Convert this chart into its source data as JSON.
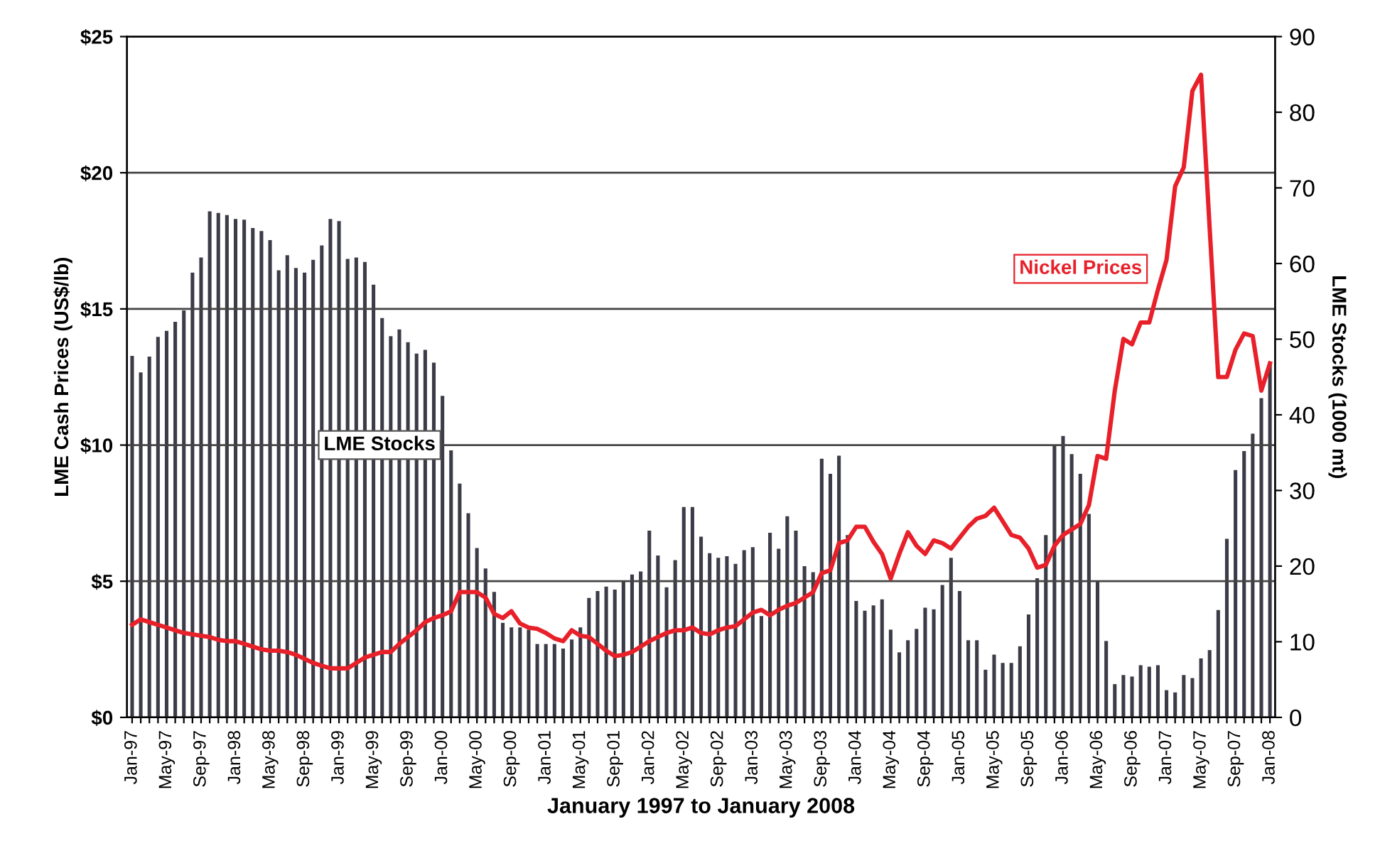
{
  "chart_data": {
    "type": "bar",
    "xlabel": "January 1997 to January 2008",
    "ylabel": "LME Cash Prices (US$/lb)",
    "y2label": "LME Stocks (1000 mt)",
    "categories": [
      "Jan-97",
      null,
      null,
      null,
      "May-97",
      null,
      null,
      null,
      "Sep-97",
      null,
      null,
      null,
      "Jan-98",
      null,
      null,
      null,
      "May-98",
      null,
      null,
      null,
      "Sep-98",
      null,
      null,
      null,
      "Jan-99",
      null,
      null,
      null,
      "May-99",
      null,
      null,
      null,
      "Sep-99",
      null,
      null,
      null,
      "Jan-00",
      null,
      null,
      null,
      "May-00",
      null,
      null,
      null,
      "Sep-00",
      null,
      null,
      null,
      "Jan-01",
      null,
      null,
      null,
      "May-01",
      null,
      null,
      null,
      "Sep-01",
      null,
      null,
      null,
      "Jan-02",
      null,
      null,
      null,
      "May-02",
      null,
      null,
      null,
      "Sep-02",
      null,
      null,
      null,
      "Jan-03",
      null,
      null,
      null,
      "May-03",
      null,
      null,
      null,
      "Sep-03",
      null,
      null,
      null,
      "Jan-04",
      null,
      null,
      null,
      "May-04",
      null,
      null,
      null,
      "Sep-04",
      null,
      null,
      null,
      "Jan-05",
      null,
      null,
      null,
      "May-05",
      null,
      null,
      null,
      "Sep-05",
      null,
      null,
      null,
      "Jan-06",
      null,
      null,
      null,
      "May-06",
      null,
      null,
      null,
      "Sep-06",
      null,
      null,
      null,
      "Jan-07",
      null,
      null,
      null,
      "May-07",
      null,
      null,
      null,
      "Sep-07",
      null,
      null,
      null,
      "Jan-08"
    ],
    "series": [
      {
        "name": "LME Stocks",
        "axis": "y2",
        "color": "#3c3c48",
        "values": [
          47.8,
          45.6,
          47.7,
          50.3,
          51.1,
          52.3,
          53.8,
          58.8,
          60.8,
          66.9,
          66.7,
          66.4,
          65.9,
          65.8,
          64.7,
          64.3,
          63.1,
          59.1,
          61.1,
          59.4,
          58.8,
          60.5,
          62.4,
          65.9,
          65.6,
          60.6,
          60.8,
          60.2,
          57.2,
          52.8,
          50.4,
          51.3,
          49.6,
          48.1,
          48.6,
          46.9,
          42.5,
          35.3,
          30.9,
          27,
          22.4,
          19.7,
          16.6,
          12.5,
          11.9,
          11.9,
          11.6,
          9.7,
          9.7,
          9.7,
          9.1,
          10.3,
          11.9,
          15.8,
          16.7,
          17.3,
          16.9,
          18.1,
          18.9,
          19.3,
          24.7,
          21.4,
          17.2,
          20.8,
          27.8,
          27.8,
          23.9,
          21.7,
          21.1,
          21.3,
          20.3,
          22.1,
          22.5,
          13.4,
          24.4,
          22.3,
          26.6,
          24.7,
          20,
          19.2,
          34.2,
          32.2,
          34.6,
          24.1,
          15.4,
          14.1,
          14.8,
          15.6,
          11.6,
          8.6,
          10.2,
          11.7,
          14.5,
          14.3,
          17.5,
          21.1,
          16.7,
          10.2,
          10.2,
          6.3,
          8.3,
          7.2,
          7.2,
          9.4,
          13.6,
          18.4,
          24.1,
          35.9,
          37.2,
          34.8,
          32.2,
          26.9,
          18.1,
          10.1,
          4.4,
          5.6,
          5.4,
          6.9,
          6.7,
          6.9,
          3.6,
          3.3,
          5.6,
          5.2,
          7.8,
          8.9,
          14.2,
          23.6,
          32.7,
          35.2,
          37.5,
          42.2,
          46.7
        ]
      },
      {
        "name": "Nickel Prices",
        "type": "line",
        "color": "#e8202a",
        "values": [
          3.4,
          3.6,
          3.5,
          3.4,
          3.3,
          3.2,
          3.1,
          3.05,
          3.0,
          2.95,
          2.85,
          2.8,
          2.8,
          2.7,
          2.6,
          2.5,
          2.45,
          2.45,
          2.4,
          2.3,
          2.15,
          2.0,
          1.9,
          1.8,
          1.8,
          1.8,
          2.0,
          2.2,
          2.3,
          2.4,
          2.4,
          2.7,
          2.95,
          3.2,
          3.5,
          3.65,
          3.75,
          3.9,
          4.6,
          4.6,
          4.6,
          4.4,
          3.8,
          3.65,
          3.9,
          3.45,
          3.3,
          3.25,
          3.1,
          2.9,
          2.8,
          3.2,
          3.0,
          2.95,
          2.7,
          2.45,
          2.25,
          2.3,
          2.4,
          2.6,
          2.8,
          2.95,
          3.1,
          3.2,
          3.2,
          3.3,
          3.1,
          3.05,
          3.2,
          3.3,
          3.35,
          3.6,
          3.85,
          3.95,
          3.75,
          3.95,
          4.1,
          4.2,
          4.4,
          4.6,
          5.3,
          5.4,
          6.4,
          6.5,
          7.0,
          7.0,
          6.45,
          6.0,
          5.1,
          6.0,
          6.8,
          6.3,
          6.0,
          6.5,
          6.4,
          6.2,
          6.6,
          7.0,
          7.3,
          7.4,
          7.7,
          7.2,
          6.7,
          6.6,
          6.2,
          5.5,
          5.6,
          6.3,
          6.7,
          6.9,
          7.1,
          7.8,
          9.6,
          9.5,
          12.0,
          13.9,
          13.7,
          14.5,
          14.5,
          15.7,
          16.8,
          19.5,
          20.2,
          23.0,
          23.6,
          18.0,
          12.5,
          12.5,
          13.5,
          14.1,
          14.0,
          12.0,
          13.0
        ]
      }
    ],
    "ylim": [
      0,
      25
    ],
    "yticks": [
      {
        "value": 0,
        "label": "$0"
      },
      {
        "value": 5,
        "label": "$5"
      },
      {
        "value": 10,
        "label": "$10"
      },
      {
        "value": 15,
        "label": "$15"
      },
      {
        "value": 20,
        "label": "$20"
      },
      {
        "value": 25,
        "label": "$25"
      }
    ],
    "y2lim": [
      0,
      90
    ],
    "y2ticks": [
      0,
      10,
      20,
      30,
      40,
      50,
      60,
      70,
      80,
      90
    ],
    "grid": "y",
    "legend": false,
    "marker": "none",
    "line_style": "solid"
  }
}
